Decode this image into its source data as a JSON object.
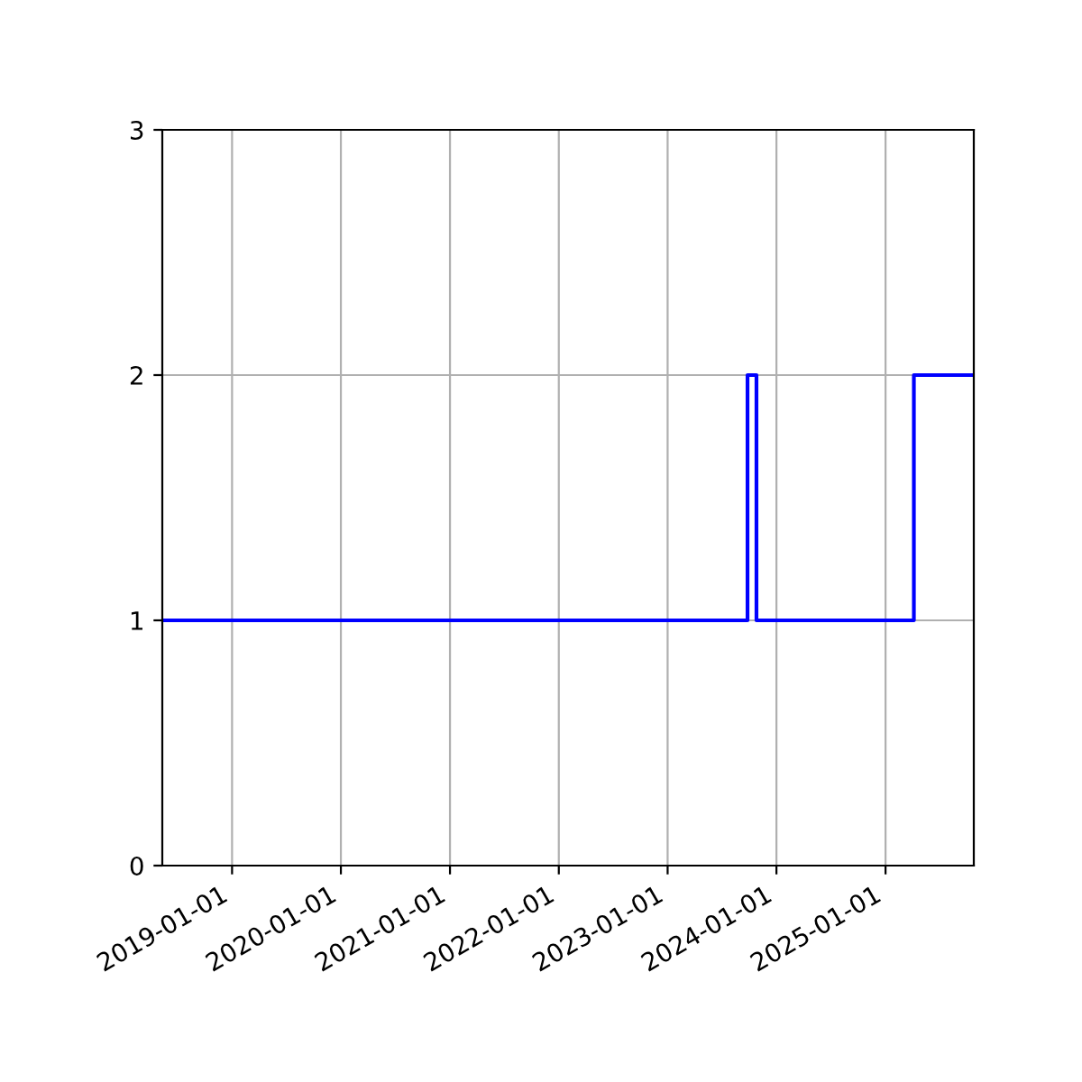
{
  "chart_data": {
    "type": "step",
    "x": [
      "2018-05-12",
      "2023-09-26",
      "2023-10-26",
      "2025-04-06",
      "2025-10-24"
    ],
    "series": [
      {
        "color": "#0000ff",
        "values": [
          1,
          2,
          1,
          2,
          2
        ]
      }
    ],
    "xlim": [
      "2018-05-12",
      "2025-10-24"
    ],
    "xticks": [
      "2019-01-01",
      "2020-01-01",
      "2021-01-01",
      "2022-01-01",
      "2023-01-01",
      "2024-01-01",
      "2025-01-01"
    ],
    "ylim": [
      0,
      3
    ],
    "yticks": [
      0,
      1,
      2,
      3
    ],
    "grid": true
  }
}
